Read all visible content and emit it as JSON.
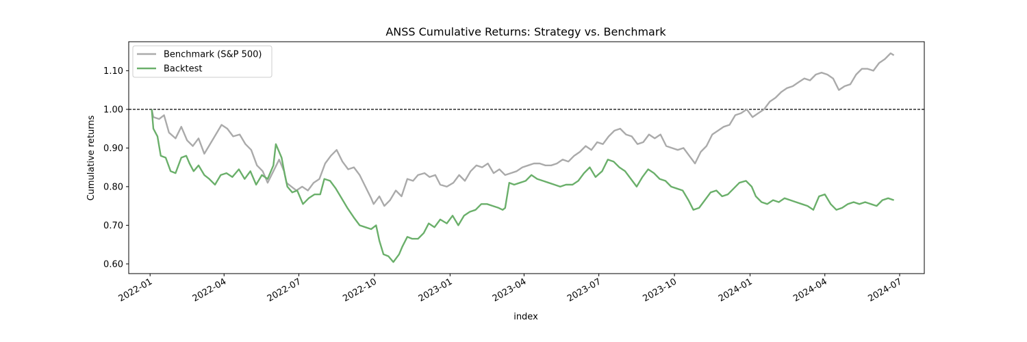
{
  "chart_data": {
    "type": "line",
    "title": "ANSS Cumulative Returns: Strategy vs. Benchmark",
    "xlabel": "index",
    "ylabel": "Cumulative returns",
    "x_range": [
      "2021-12-06",
      "2024-07-31"
    ],
    "ylim": [
      0.575,
      1.175
    ],
    "x_ticks": [
      "2022-01",
      "2022-04",
      "2022-07",
      "2022-10",
      "2023-01",
      "2023-04",
      "2023-07",
      "2023-10",
      "2024-01",
      "2024-04",
      "2024-07"
    ],
    "y_ticks": [
      "0.60",
      "0.70",
      "0.80",
      "0.90",
      "1.00",
      "1.10"
    ],
    "y_tick_values": [
      0.6,
      0.7,
      0.8,
      0.9,
      1.0,
      1.1
    ],
    "reference_line": {
      "y": 1.0,
      "style": "dashed",
      "color": "#000000"
    },
    "grid": false,
    "legend_position": "top-left",
    "series": [
      {
        "name": "Benchmark (S&P 500)",
        "color": "#aaaaaa",
        "points": [
          [
            "2022-01-03",
            1.0
          ],
          [
            "2022-01-05",
            0.98
          ],
          [
            "2022-01-12",
            0.975
          ],
          [
            "2022-01-18",
            0.985
          ],
          [
            "2022-01-24",
            0.94
          ],
          [
            "2022-02-01",
            0.925
          ],
          [
            "2022-02-08",
            0.955
          ],
          [
            "2022-02-15",
            0.92
          ],
          [
            "2022-02-22",
            0.905
          ],
          [
            "2022-03-01",
            0.925
          ],
          [
            "2022-03-08",
            0.885
          ],
          [
            "2022-03-15",
            0.91
          ],
          [
            "2022-03-22",
            0.935
          ],
          [
            "2022-03-29",
            0.96
          ],
          [
            "2022-04-05",
            0.95
          ],
          [
            "2022-04-12",
            0.93
          ],
          [
            "2022-04-20",
            0.935
          ],
          [
            "2022-04-27",
            0.91
          ],
          [
            "2022-05-04",
            0.895
          ],
          [
            "2022-05-11",
            0.855
          ],
          [
            "2022-05-18",
            0.84
          ],
          [
            "2022-05-24",
            0.81
          ],
          [
            "2022-05-31",
            0.84
          ],
          [
            "2022-06-07",
            0.87
          ],
          [
            "2022-06-13",
            0.84
          ],
          [
            "2022-06-16",
            0.81
          ],
          [
            "2022-06-22",
            0.8
          ],
          [
            "2022-06-28",
            0.79
          ],
          [
            "2022-07-05",
            0.8
          ],
          [
            "2022-07-12",
            0.79
          ],
          [
            "2022-07-19",
            0.81
          ],
          [
            "2022-07-26",
            0.82
          ],
          [
            "2022-08-02",
            0.86
          ],
          [
            "2022-08-09",
            0.88
          ],
          [
            "2022-08-16",
            0.895
          ],
          [
            "2022-08-23",
            0.865
          ],
          [
            "2022-08-30",
            0.845
          ],
          [
            "2022-09-06",
            0.85
          ],
          [
            "2022-09-13",
            0.83
          ],
          [
            "2022-09-20",
            0.8
          ],
          [
            "2022-09-27",
            0.77
          ],
          [
            "2022-09-30",
            0.755
          ],
          [
            "2022-10-07",
            0.775
          ],
          [
            "2022-10-13",
            0.75
          ],
          [
            "2022-10-20",
            0.765
          ],
          [
            "2022-10-27",
            0.79
          ],
          [
            "2022-11-03",
            0.775
          ],
          [
            "2022-11-10",
            0.82
          ],
          [
            "2022-11-17",
            0.815
          ],
          [
            "2022-11-23",
            0.83
          ],
          [
            "2022-12-01",
            0.835
          ],
          [
            "2022-12-07",
            0.825
          ],
          [
            "2022-12-14",
            0.83
          ],
          [
            "2022-12-20",
            0.805
          ],
          [
            "2022-12-28",
            0.8
          ],
          [
            "2023-01-05",
            0.81
          ],
          [
            "2023-01-12",
            0.83
          ],
          [
            "2023-01-19",
            0.815
          ],
          [
            "2023-01-26",
            0.84
          ],
          [
            "2023-02-02",
            0.855
          ],
          [
            "2023-02-09",
            0.85
          ],
          [
            "2023-02-16",
            0.86
          ],
          [
            "2023-02-23",
            0.835
          ],
          [
            "2023-03-02",
            0.845
          ],
          [
            "2023-03-09",
            0.83
          ],
          [
            "2023-03-16",
            0.835
          ],
          [
            "2023-03-23",
            0.84
          ],
          [
            "2023-03-30",
            0.85
          ],
          [
            "2023-04-06",
            0.855
          ],
          [
            "2023-04-13",
            0.86
          ],
          [
            "2023-04-20",
            0.86
          ],
          [
            "2023-04-27",
            0.855
          ],
          [
            "2023-05-04",
            0.855
          ],
          [
            "2023-05-11",
            0.86
          ],
          [
            "2023-05-18",
            0.87
          ],
          [
            "2023-05-25",
            0.865
          ],
          [
            "2023-06-01",
            0.88
          ],
          [
            "2023-06-08",
            0.89
          ],
          [
            "2023-06-15",
            0.905
          ],
          [
            "2023-06-22",
            0.895
          ],
          [
            "2023-06-29",
            0.915
          ],
          [
            "2023-07-06",
            0.91
          ],
          [
            "2023-07-13",
            0.93
          ],
          [
            "2023-07-20",
            0.945
          ],
          [
            "2023-07-27",
            0.95
          ],
          [
            "2023-08-03",
            0.935
          ],
          [
            "2023-08-10",
            0.93
          ],
          [
            "2023-08-17",
            0.91
          ],
          [
            "2023-08-24",
            0.915
          ],
          [
            "2023-08-31",
            0.935
          ],
          [
            "2023-09-07",
            0.925
          ],
          [
            "2023-09-14",
            0.935
          ],
          [
            "2023-09-21",
            0.905
          ],
          [
            "2023-09-28",
            0.9
          ],
          [
            "2023-10-05",
            0.895
          ],
          [
            "2023-10-12",
            0.9
          ],
          [
            "2023-10-19",
            0.88
          ],
          [
            "2023-10-26",
            0.86
          ],
          [
            "2023-11-02",
            0.89
          ],
          [
            "2023-11-09",
            0.905
          ],
          [
            "2023-11-16",
            0.935
          ],
          [
            "2023-11-23",
            0.945
          ],
          [
            "2023-11-30",
            0.955
          ],
          [
            "2023-12-07",
            0.96
          ],
          [
            "2023-12-14",
            0.985
          ],
          [
            "2023-12-21",
            0.99
          ],
          [
            "2023-12-28",
            1.0
          ],
          [
            "2024-01-04",
            0.98
          ],
          [
            "2024-01-11",
            0.99
          ],
          [
            "2024-01-18",
            1.0
          ],
          [
            "2024-01-25",
            1.02
          ],
          [
            "2024-02-01",
            1.03
          ],
          [
            "2024-02-08",
            1.045
          ],
          [
            "2024-02-15",
            1.055
          ],
          [
            "2024-02-22",
            1.06
          ],
          [
            "2024-02-29",
            1.07
          ],
          [
            "2024-03-07",
            1.08
          ],
          [
            "2024-03-14",
            1.075
          ],
          [
            "2024-03-21",
            1.09
          ],
          [
            "2024-03-28",
            1.095
          ],
          [
            "2024-04-04",
            1.09
          ],
          [
            "2024-04-11",
            1.08
          ],
          [
            "2024-04-18",
            1.05
          ],
          [
            "2024-04-25",
            1.06
          ],
          [
            "2024-05-02",
            1.065
          ],
          [
            "2024-05-09",
            1.09
          ],
          [
            "2024-05-16",
            1.105
          ],
          [
            "2024-05-23",
            1.105
          ],
          [
            "2024-05-30",
            1.1
          ],
          [
            "2024-06-06",
            1.12
          ],
          [
            "2024-06-13",
            1.13
          ],
          [
            "2024-06-20",
            1.145
          ],
          [
            "2024-06-24",
            1.14
          ]
        ]
      },
      {
        "name": "Backtest",
        "color": "#6aaf6a",
        "points": [
          [
            "2022-01-03",
            1.0
          ],
          [
            "2022-01-05",
            0.95
          ],
          [
            "2022-01-10",
            0.93
          ],
          [
            "2022-01-14",
            0.88
          ],
          [
            "2022-01-20",
            0.875
          ],
          [
            "2022-01-26",
            0.84
          ],
          [
            "2022-02-01",
            0.835
          ],
          [
            "2022-02-08",
            0.875
          ],
          [
            "2022-02-14",
            0.88
          ],
          [
            "2022-02-18",
            0.86
          ],
          [
            "2022-02-23",
            0.84
          ],
          [
            "2022-03-01",
            0.855
          ],
          [
            "2022-03-08",
            0.83
          ],
          [
            "2022-03-14",
            0.82
          ],
          [
            "2022-03-21",
            0.805
          ],
          [
            "2022-03-28",
            0.83
          ],
          [
            "2022-04-04",
            0.835
          ],
          [
            "2022-04-11",
            0.825
          ],
          [
            "2022-04-19",
            0.845
          ],
          [
            "2022-04-26",
            0.82
          ],
          [
            "2022-05-03",
            0.84
          ],
          [
            "2022-05-10",
            0.805
          ],
          [
            "2022-05-17",
            0.83
          ],
          [
            "2022-05-24",
            0.82
          ],
          [
            "2022-05-31",
            0.855
          ],
          [
            "2022-06-03",
            0.91
          ],
          [
            "2022-06-07",
            0.89
          ],
          [
            "2022-06-10",
            0.875
          ],
          [
            "2022-06-14",
            0.83
          ],
          [
            "2022-06-17",
            0.8
          ],
          [
            "2022-06-23",
            0.785
          ],
          [
            "2022-06-29",
            0.79
          ],
          [
            "2022-07-06",
            0.755
          ],
          [
            "2022-07-13",
            0.77
          ],
          [
            "2022-07-20",
            0.78
          ],
          [
            "2022-07-27",
            0.78
          ],
          [
            "2022-08-01",
            0.82
          ],
          [
            "2022-08-08",
            0.815
          ],
          [
            "2022-08-15",
            0.795
          ],
          [
            "2022-08-22",
            0.77
          ],
          [
            "2022-08-29",
            0.745
          ],
          [
            "2022-09-06",
            0.72
          ],
          [
            "2022-09-13",
            0.7
          ],
          [
            "2022-09-20",
            0.695
          ],
          [
            "2022-09-27",
            0.69
          ],
          [
            "2022-10-03",
            0.7
          ],
          [
            "2022-10-07",
            0.66
          ],
          [
            "2022-10-12",
            0.625
          ],
          [
            "2022-10-18",
            0.62
          ],
          [
            "2022-10-24",
            0.605
          ],
          [
            "2022-10-31",
            0.625
          ],
          [
            "2022-11-04",
            0.645
          ],
          [
            "2022-11-10",
            0.67
          ],
          [
            "2022-11-16",
            0.665
          ],
          [
            "2022-11-23",
            0.665
          ],
          [
            "2022-11-30",
            0.68
          ],
          [
            "2022-12-06",
            0.705
          ],
          [
            "2022-12-13",
            0.695
          ],
          [
            "2022-12-20",
            0.715
          ],
          [
            "2022-12-28",
            0.705
          ],
          [
            "2023-01-04",
            0.725
          ],
          [
            "2023-01-11",
            0.7
          ],
          [
            "2023-01-18",
            0.725
          ],
          [
            "2023-01-25",
            0.735
          ],
          [
            "2023-02-01",
            0.74
          ],
          [
            "2023-02-08",
            0.755
          ],
          [
            "2023-02-15",
            0.755
          ],
          [
            "2023-02-22",
            0.75
          ],
          [
            "2023-03-01",
            0.745
          ],
          [
            "2023-03-06",
            0.74
          ],
          [
            "2023-03-09",
            0.745
          ],
          [
            "2023-03-14",
            0.81
          ],
          [
            "2023-03-20",
            0.805
          ],
          [
            "2023-03-27",
            0.81
          ],
          [
            "2023-04-03",
            0.815
          ],
          [
            "2023-04-10",
            0.83
          ],
          [
            "2023-04-17",
            0.82
          ],
          [
            "2023-04-24",
            0.815
          ],
          [
            "2023-05-01",
            0.81
          ],
          [
            "2023-05-08",
            0.805
          ],
          [
            "2023-05-15",
            0.8
          ],
          [
            "2023-05-22",
            0.805
          ],
          [
            "2023-05-30",
            0.805
          ],
          [
            "2023-06-06",
            0.815
          ],
          [
            "2023-06-13",
            0.835
          ],
          [
            "2023-06-20",
            0.85
          ],
          [
            "2023-06-27",
            0.825
          ],
          [
            "2023-07-05",
            0.84
          ],
          [
            "2023-07-12",
            0.87
          ],
          [
            "2023-07-19",
            0.865
          ],
          [
            "2023-07-26",
            0.85
          ],
          [
            "2023-08-02",
            0.84
          ],
          [
            "2023-08-09",
            0.82
          ],
          [
            "2023-08-16",
            0.8
          ],
          [
            "2023-08-23",
            0.825
          ],
          [
            "2023-08-30",
            0.845
          ],
          [
            "2023-09-06",
            0.835
          ],
          [
            "2023-09-13",
            0.82
          ],
          [
            "2023-09-20",
            0.815
          ],
          [
            "2023-09-27",
            0.8
          ],
          [
            "2023-10-04",
            0.795
          ],
          [
            "2023-10-11",
            0.79
          ],
          [
            "2023-10-18",
            0.765
          ],
          [
            "2023-10-24",
            0.74
          ],
          [
            "2023-10-31",
            0.745
          ],
          [
            "2023-11-07",
            0.765
          ],
          [
            "2023-11-14",
            0.785
          ],
          [
            "2023-11-21",
            0.79
          ],
          [
            "2023-11-28",
            0.775
          ],
          [
            "2023-12-05",
            0.78
          ],
          [
            "2023-12-12",
            0.795
          ],
          [
            "2023-12-19",
            0.81
          ],
          [
            "2023-12-27",
            0.815
          ],
          [
            "2024-01-03",
            0.8
          ],
          [
            "2024-01-08",
            0.775
          ],
          [
            "2024-01-15",
            0.76
          ],
          [
            "2024-01-22",
            0.755
          ],
          [
            "2024-01-29",
            0.765
          ],
          [
            "2024-02-05",
            0.76
          ],
          [
            "2024-02-12",
            0.77
          ],
          [
            "2024-02-19",
            0.765
          ],
          [
            "2024-02-26",
            0.76
          ],
          [
            "2024-03-04",
            0.755
          ],
          [
            "2024-03-11",
            0.75
          ],
          [
            "2024-03-18",
            0.74
          ],
          [
            "2024-03-25",
            0.775
          ],
          [
            "2024-04-01",
            0.78
          ],
          [
            "2024-04-08",
            0.755
          ],
          [
            "2024-04-15",
            0.74
          ],
          [
            "2024-04-22",
            0.745
          ],
          [
            "2024-04-29",
            0.755
          ],
          [
            "2024-05-06",
            0.76
          ],
          [
            "2024-05-13",
            0.755
          ],
          [
            "2024-05-20",
            0.76
          ],
          [
            "2024-05-27",
            0.755
          ],
          [
            "2024-06-03",
            0.75
          ],
          [
            "2024-06-10",
            0.765
          ],
          [
            "2024-06-17",
            0.77
          ],
          [
            "2024-06-24",
            0.765
          ]
        ]
      }
    ]
  }
}
